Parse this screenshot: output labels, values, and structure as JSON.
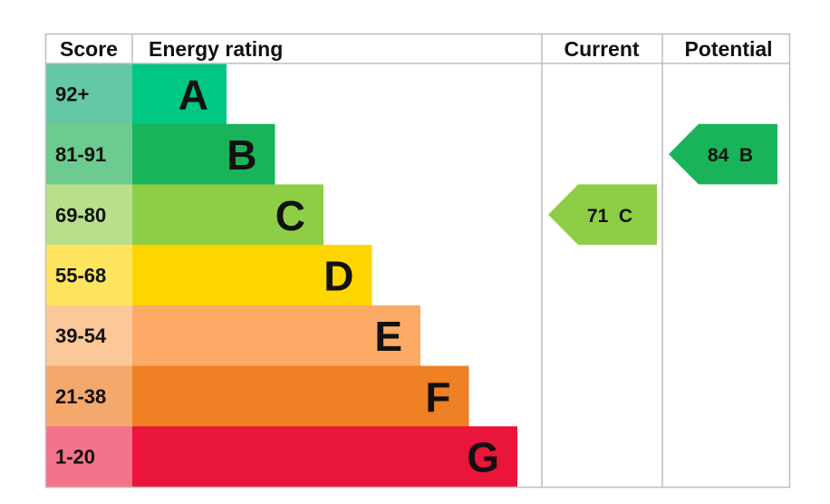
{
  "chart_data": {
    "type": "bar",
    "headers": {
      "score": "Score",
      "rating": "Energy rating",
      "current": "Current",
      "potential": "Potential"
    },
    "bands": [
      {
        "letter": "A",
        "range": "92+",
        "color": "#00c781",
        "tint": "#64c8a4"
      },
      {
        "letter": "B",
        "range": "81-91",
        "color": "#19b459",
        "tint": "#6ccb8e"
      },
      {
        "letter": "C",
        "range": "69-80",
        "color": "#8dce46",
        "tint": "#b8e08c"
      },
      {
        "letter": "D",
        "range": "55-68",
        "color": "#ffd500",
        "tint": "#ffe45f"
      },
      {
        "letter": "E",
        "range": "39-54",
        "color": "#fcaa65",
        "tint": "#fdc898"
      },
      {
        "letter": "F",
        "range": "21-38",
        "color": "#ef8023",
        "tint": "#f4a86c"
      },
      {
        "letter": "G",
        "range": "1-20",
        "color": "#e9153b",
        "tint": "#f2738a"
      }
    ],
    "current": {
      "value": 71,
      "letter": "C",
      "label": "71  C",
      "color": "#8dce46"
    },
    "potential": {
      "value": 84,
      "letter": "B",
      "label": "84  B",
      "color": "#19b459"
    }
  }
}
